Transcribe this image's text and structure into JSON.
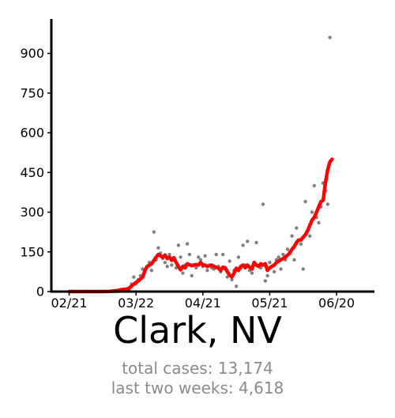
{
  "title": "Clark, NV",
  "stats": {
    "total_cases": "total cases: 13,174",
    "last_two_weeks": "last two weeks: 4,618"
  },
  "chart_data": {
    "type": "line",
    "x_tick_labels": [
      "02/21",
      "03/22",
      "04/21",
      "05/21",
      "06/20"
    ],
    "x_tick_days": [
      0,
      30,
      60,
      90,
      120
    ],
    "y_ticks": [
      0,
      150,
      300,
      450,
      600,
      750,
      900
    ],
    "xlim": [
      -8,
      137
    ],
    "ylim": [
      0,
      1030
    ],
    "grid": false,
    "colors": {
      "daily_points": "#808080",
      "moving_average": "#ff0000",
      "axes": "#000000"
    },
    "daily_cases": [
      [
        0,
        0
      ],
      [
        1,
        0
      ],
      [
        2,
        0
      ],
      [
        3,
        0
      ],
      [
        4,
        0
      ],
      [
        5,
        0
      ],
      [
        6,
        0
      ],
      [
        7,
        0
      ],
      [
        8,
        0
      ],
      [
        9,
        0
      ],
      [
        10,
        0
      ],
      [
        11,
        0
      ],
      [
        12,
        0
      ],
      [
        13,
        0
      ],
      [
        14,
        0
      ],
      [
        15,
        0
      ],
      [
        16,
        0
      ],
      [
        17,
        0
      ],
      [
        18,
        0
      ],
      [
        19,
        0
      ],
      [
        20,
        0
      ],
      [
        21,
        0
      ],
      [
        22,
        1
      ],
      [
        23,
        2
      ],
      [
        24,
        3
      ],
      [
        25,
        5
      ],
      [
        26,
        8
      ],
      [
        27,
        10
      ],
      [
        28,
        28
      ],
      [
        29,
        55
      ],
      [
        30,
        30
      ],
      [
        31,
        45
      ],
      [
        32,
        60
      ],
      [
        33,
        85
      ],
      [
        34,
        75
      ],
      [
        35,
        95
      ],
      [
        36,
        110
      ],
      [
        37,
        80
      ],
      [
        38,
        225
      ],
      [
        39,
        120
      ],
      [
        40,
        165
      ],
      [
        41,
        145
      ],
      [
        42,
        125
      ],
      [
        43,
        110
      ],
      [
        44,
        95
      ],
      [
        45,
        140
      ],
      [
        46,
        100
      ],
      [
        47,
        120
      ],
      [
        48,
        90
      ],
      [
        49,
        175
      ],
      [
        50,
        130
      ],
      [
        51,
        70
      ],
      [
        52,
        100
      ],
      [
        53,
        180
      ],
      [
        54,
        140
      ],
      [
        55,
        60
      ],
      [
        56,
        100
      ],
      [
        57,
        90
      ],
      [
        58,
        130
      ],
      [
        59,
        120
      ],
      [
        60,
        95
      ],
      [
        61,
        135
      ],
      [
        62,
        80
      ],
      [
        63,
        100
      ],
      [
        64,
        90
      ],
      [
        65,
        85
      ],
      [
        66,
        140
      ],
      [
        67,
        95
      ],
      [
        68,
        75
      ],
      [
        69,
        140
      ],
      [
        70,
        85
      ],
      [
        71,
        55
      ],
      [
        72,
        115
      ],
      [
        73,
        45
      ],
      [
        74,
        80
      ],
      [
        75,
        20
      ],
      [
        76,
        130
      ],
      [
        77,
        90
      ],
      [
        78,
        175
      ],
      [
        79,
        100
      ],
      [
        80,
        190
      ],
      [
        81,
        80
      ],
      [
        82,
        70
      ],
      [
        83,
        110
      ],
      [
        84,
        185
      ],
      [
        85,
        95
      ],
      [
        86,
        90
      ],
      [
        87,
        330
      ],
      [
        88,
        40
      ],
      [
        89,
        60
      ],
      [
        90,
        110
      ],
      [
        91,
        95
      ],
      [
        92,
        75
      ],
      [
        93,
        120
      ],
      [
        94,
        130
      ],
      [
        95,
        85
      ],
      [
        96,
        140
      ],
      [
        97,
        120
      ],
      [
        98,
        160
      ],
      [
        99,
        150
      ],
      [
        100,
        210
      ],
      [
        101,
        120
      ],
      [
        102,
        240
      ],
      [
        103,
        195
      ],
      [
        104,
        180
      ],
      [
        105,
        85
      ],
      [
        106,
        340
      ],
      [
        107,
        230
      ],
      [
        108,
        210
      ],
      [
        109,
        300
      ],
      [
        110,
        400
      ],
      [
        111,
        280
      ],
      [
        112,
        260
      ],
      [
        113,
        320
      ],
      [
        114,
        410
      ],
      [
        115,
        380
      ],
      [
        116,
        330
      ],
      [
        117,
        960
      ]
    ],
    "moving_average": [
      [
        0,
        0
      ],
      [
        3,
        0
      ],
      [
        6,
        0
      ],
      [
        9,
        0
      ],
      [
        12,
        0
      ],
      [
        15,
        0
      ],
      [
        18,
        1
      ],
      [
        21,
        3
      ],
      [
        24,
        8
      ],
      [
        26,
        10
      ],
      [
        27,
        13
      ],
      [
        29,
        28
      ],
      [
        31,
        40
      ],
      [
        33,
        55
      ],
      [
        34,
        80
      ],
      [
        35,
        95
      ],
      [
        37,
        105
      ],
      [
        39,
        130
      ],
      [
        40,
        140
      ],
      [
        41,
        135
      ],
      [
        42,
        130
      ],
      [
        43,
        138
      ],
      [
        44,
        125
      ],
      [
        45,
        130
      ],
      [
        46,
        118
      ],
      [
        47,
        128
      ],
      [
        48,
        110
      ],
      [
        49,
        95
      ],
      [
        50,
        82
      ],
      [
        51,
        95
      ],
      [
        52,
        90
      ],
      [
        53,
        105
      ],
      [
        55,
        98
      ],
      [
        57,
        102
      ],
      [
        58,
        100
      ],
      [
        59,
        110
      ],
      [
        60,
        100
      ],
      [
        61,
        100
      ],
      [
        62,
        95
      ],
      [
        63,
        98
      ],
      [
        64,
        100
      ],
      [
        65,
        95
      ],
      [
        66,
        92
      ],
      [
        67,
        88
      ],
      [
        68,
        80
      ],
      [
        69,
        92
      ],
      [
        70,
        90
      ],
      [
        71,
        75
      ],
      [
        72,
        62
      ],
      [
        73,
        55
      ],
      [
        74,
        70
      ],
      [
        75,
        88
      ],
      [
        76,
        80
      ],
      [
        77,
        95
      ],
      [
        78,
        100
      ],
      [
        79,
        90
      ],
      [
        80,
        100
      ],
      [
        81,
        92
      ],
      [
        82,
        85
      ],
      [
        83,
        110
      ],
      [
        84,
        100
      ],
      [
        85,
        95
      ],
      [
        86,
        105
      ],
      [
        87,
        100
      ],
      [
        88,
        105
      ],
      [
        89,
        80
      ],
      [
        90,
        90
      ],
      [
        91,
        95
      ],
      [
        92,
        100
      ],
      [
        93,
        110
      ],
      [
        95,
        120
      ],
      [
        97,
        130
      ],
      [
        98,
        138
      ],
      [
        99,
        145
      ],
      [
        100,
        160
      ],
      [
        101,
        170
      ],
      [
        102,
        185
      ],
      [
        103,
        195
      ],
      [
        104,
        195
      ],
      [
        105,
        205
      ],
      [
        106,
        215
      ],
      [
        107,
        230
      ],
      [
        108,
        250
      ],
      [
        109,
        270
      ],
      [
        110,
        280
      ],
      [
        111,
        300
      ],
      [
        112,
        320
      ],
      [
        113,
        340
      ],
      [
        114,
        345
      ],
      [
        115,
        410
      ],
      [
        116,
        460
      ],
      [
        117,
        490
      ],
      [
        118,
        500
      ]
    ]
  }
}
